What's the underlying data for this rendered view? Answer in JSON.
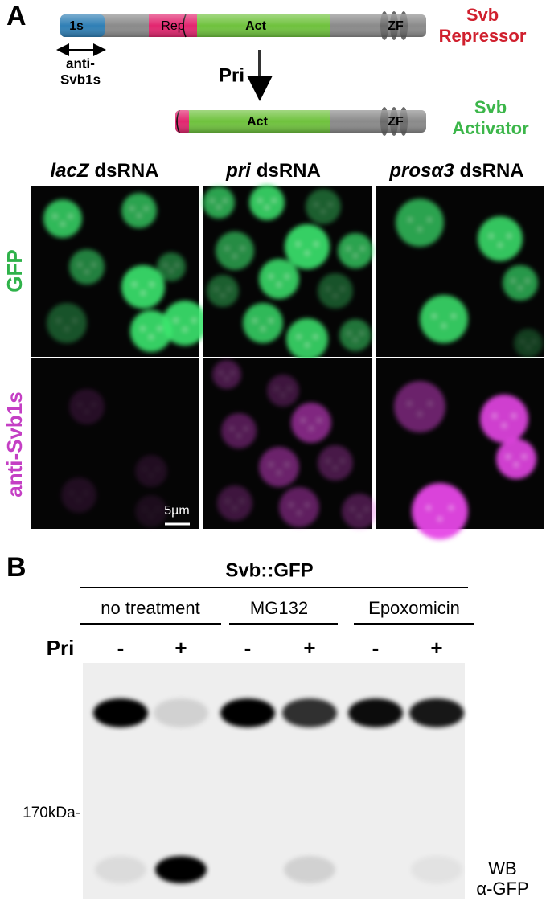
{
  "panel_a": {
    "label": "A",
    "repressor": {
      "domains": [
        "1s",
        "Rep",
        "Act",
        "ZF"
      ],
      "name": [
        "Svb",
        "Repressor"
      ]
    },
    "antibody": [
      "anti-",
      "Svb1s"
    ],
    "arrow_label": "Pri",
    "activator": {
      "domains": [
        "Act",
        "ZF"
      ],
      "name": [
        "Svb",
        "Activator"
      ]
    },
    "columns": [
      {
        "gene": "lacZ",
        "suffix": "dsRNA"
      },
      {
        "gene": "pri",
        "suffix": "dsRNA"
      },
      {
        "gene": "prosα3",
        "suffix": "dsRNA"
      }
    ],
    "rows": [
      "GFP",
      "anti-Svb1s"
    ],
    "scale_bar": "5µm"
  },
  "panel_b": {
    "label": "B",
    "construct": "Svb::GFP",
    "treatments": [
      "no treatment",
      "MG132",
      "Epoxomicin"
    ],
    "row_label": "Pri",
    "lanes": [
      "-",
      "+",
      "-",
      "+",
      "-",
      "+"
    ],
    "marker": "170kDa-",
    "antibody": [
      "WB",
      "α-GFP"
    ]
  }
}
